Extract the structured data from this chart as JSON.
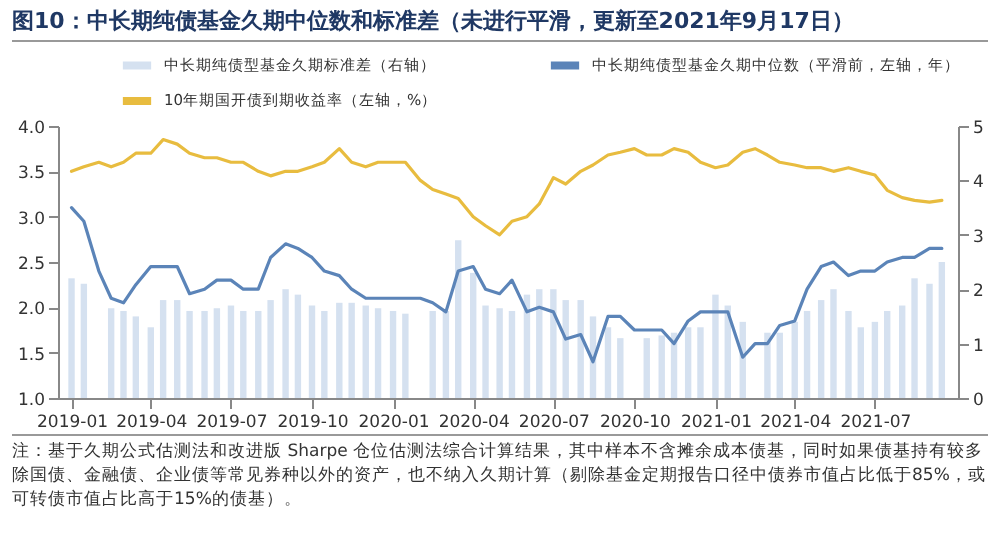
{
  "chart_data": {
    "type": "line",
    "title": "图10：中长期纯债基金久期中位数和标准差（未进行平滑，更新至2021年9月17日）",
    "annotations": [
      "注：基于久期公式估测法和改进版 Sharpe 仓位估测法综合计算结果，其中样本不含摊余成本债基，同时如果债基持有较多除国债、金融债、企业债等常见券种以外的资产，也不纳入久期计算（剔除基金定期报告口径中债券市值占比低于85%，或可转债市值占比高于15%的债基）。"
    ],
    "x": [
      "2019-01-01",
      "2019-01-15",
      "2019-02-01",
      "2019-02-15",
      "2019-03-01",
      "2019-03-15",
      "2019-04-01",
      "2019-04-15",
      "2019-05-01",
      "2019-05-15",
      "2019-06-01",
      "2019-06-15",
      "2019-07-01",
      "2019-07-15",
      "2019-08-01",
      "2019-08-15",
      "2019-09-01",
      "2019-09-15",
      "2019-10-01",
      "2019-10-15",
      "2019-11-01",
      "2019-11-15",
      "2019-12-01",
      "2019-12-15",
      "2020-01-01",
      "2020-01-15",
      "2020-02-01",
      "2020-02-15",
      "2020-03-01",
      "2020-03-15",
      "2020-04-01",
      "2020-04-15",
      "2020-05-01",
      "2020-05-15",
      "2020-06-01",
      "2020-06-15",
      "2020-07-01",
      "2020-07-15",
      "2020-08-01",
      "2020-08-15",
      "2020-09-01",
      "2020-09-15",
      "2020-10-01",
      "2020-10-15",
      "2020-11-01",
      "2020-11-15",
      "2020-12-01",
      "2020-12-15",
      "2021-01-01",
      "2021-01-15",
      "2021-02-01",
      "2021-02-15",
      "2021-03-01",
      "2021-03-15",
      "2021-04-01",
      "2021-04-15",
      "2021-05-01",
      "2021-05-15",
      "2021-06-01",
      "2021-06-15",
      "2021-07-01",
      "2021-07-15",
      "2021-08-01",
      "2021-08-15",
      "2021-09-01",
      "2021-09-15"
    ],
    "series": [
      {
        "name": "中长期纯债型基金久期标准差（右轴）",
        "type": "bar",
        "axis": "y2",
        "color": "#d5e1f0",
        "values": [
          2.2,
          2.1,
          null,
          1.65,
          1.6,
          1.5,
          1.3,
          1.8,
          1.8,
          1.6,
          1.6,
          1.65,
          1.7,
          1.6,
          1.6,
          1.8,
          2.0,
          1.9,
          1.7,
          1.6,
          1.75,
          1.75,
          1.7,
          1.65,
          1.6,
          1.55,
          null,
          1.6,
          1.6,
          2.9,
          2.3,
          1.7,
          1.65,
          1.6,
          1.9,
          2.0,
          2.0,
          1.8,
          1.8,
          1.5,
          1.3,
          1.1,
          null,
          1.1,
          1.15,
          1.2,
          1.3,
          1.3,
          1.9,
          1.7,
          1.4,
          null,
          1.2,
          1.2,
          1.4,
          1.6,
          1.8,
          2.0,
          1.6,
          1.3,
          1.4,
          1.6,
          1.7,
          2.2,
          2.1,
          2.5
        ]
      },
      {
        "name": "中长期纯债型基金久期中位数（平滑前，左轴，年）",
        "color": "#5b84b8",
        "values": [
          3.1,
          2.95,
          2.4,
          2.1,
          2.05,
          2.25,
          2.45,
          2.45,
          2.45,
          2.15,
          2.2,
          2.3,
          2.3,
          2.2,
          2.2,
          2.55,
          2.7,
          2.65,
          2.55,
          2.4,
          2.35,
          2.2,
          2.1,
          2.1,
          2.1,
          2.1,
          2.1,
          2.05,
          1.95,
          2.4,
          2.45,
          2.2,
          2.15,
          2.3,
          1.95,
          2.0,
          1.95,
          1.65,
          1.7,
          1.4,
          1.9,
          1.9,
          1.75,
          1.75,
          1.75,
          1.6,
          1.85,
          1.95,
          1.95,
          1.95,
          1.45,
          1.6,
          1.6,
          1.8,
          1.85,
          2.2,
          2.45,
          2.5,
          2.35,
          2.4,
          2.4,
          2.5,
          2.55,
          2.55,
          2.65,
          2.65
        ]
      },
      {
        "name": "10年期国开债到期收益率（左轴，%）",
        "color": "#e8bc3f",
        "values": [
          3.5,
          3.55,
          3.6,
          3.55,
          3.6,
          3.7,
          3.7,
          3.85,
          3.8,
          3.7,
          3.65,
          3.65,
          3.6,
          3.6,
          3.5,
          3.45,
          3.5,
          3.5,
          3.55,
          3.6,
          3.75,
          3.6,
          3.55,
          3.6,
          3.6,
          3.6,
          3.4,
          3.3,
          3.25,
          3.2,
          3.0,
          2.9,
          2.8,
          2.95,
          3.0,
          3.14,
          3.43,
          3.36,
          3.5,
          3.57,
          3.68,
          3.71,
          3.75,
          3.68,
          3.68,
          3.75,
          3.71,
          3.6,
          3.54,
          3.57,
          3.71,
          3.75,
          3.68,
          3.6,
          3.57,
          3.54,
          3.54,
          3.5,
          3.54,
          3.5,
          3.46,
          3.29,
          3.21,
          3.18,
          3.16,
          3.18
        ]
      }
    ],
    "xlim": [
      "2018-12-28",
      "2021-09-22"
    ],
    "xticks": [
      "2019-01",
      "2019-04",
      "2019-07",
      "2019-10",
      "2020-01",
      "2020-04",
      "2020-07",
      "2020-10",
      "2021-01",
      "2021-04",
      "2021-07"
    ],
    "ylim": [
      1,
      4
    ],
    "yticks": [
      {
        "value": 1,
        "label": "1.0"
      },
      1.5,
      {
        "value": 2,
        "label": "2.0"
      },
      2.5,
      {
        "value": 3,
        "label": "3.0"
      },
      3.5,
      {
        "value": 4,
        "label": "4.0"
      }
    ],
    "y2lim": [
      0,
      5
    ],
    "y2ticks": [
      0,
      1,
      2,
      3,
      4,
      5
    ],
    "legend": "top"
  }
}
